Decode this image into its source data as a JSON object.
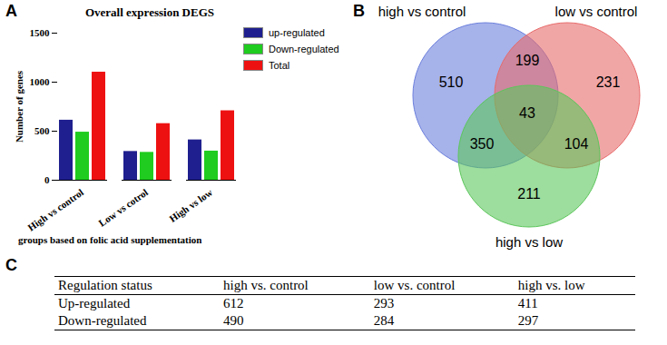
{
  "chart_data": [
    {
      "type": "bar",
      "panel_label": "A",
      "title": "Overall expression DEGS",
      "xlabel": "groups based on folic acid supplementation",
      "ylabel": "Number of genes",
      "categories": [
        "High vs control",
        "Low vs cotrol",
        "High vs low"
      ],
      "series": [
        {
          "name": "up-regulated",
          "color": "#1f1f8f",
          "values": [
            612,
            293,
            411
          ]
        },
        {
          "name": "Down-regulated",
          "color": "#1fcc1f",
          "values": [
            490,
            284,
            297
          ]
        },
        {
          "name": "Total",
          "color": "#ee1111",
          "values": [
            1102,
            577,
            708
          ]
        }
      ],
      "ylim": [
        0,
        1500
      ],
      "yticks": [
        0,
        500,
        1000,
        1500
      ],
      "legend": "right"
    },
    {
      "type": "venn",
      "panel_label": "B",
      "sets": [
        {
          "name": "high vs control",
          "color": "#6b7fdc"
        },
        {
          "name": "low vs control",
          "color": "#e86a6a"
        },
        {
          "name": "high vs low",
          "color": "#5cc65c"
        }
      ],
      "regions": [
        {
          "sets": [
            "high vs control"
          ],
          "value": 510
        },
        {
          "sets": [
            "low vs control"
          ],
          "value": 231
        },
        {
          "sets": [
            "high vs low"
          ],
          "value": 211
        },
        {
          "sets": [
            "high vs control",
            "low vs control"
          ],
          "value": 199
        },
        {
          "sets": [
            "high vs control",
            "high vs low"
          ],
          "value": 350
        },
        {
          "sets": [
            "low vs control",
            "high vs low"
          ],
          "value": 104
        },
        {
          "sets": [
            "high vs control",
            "low vs control",
            "high vs low"
          ],
          "value": 43
        }
      ]
    },
    {
      "type": "table",
      "panel_label": "C",
      "columns": [
        "Regulation status",
        "high vs. control",
        "low vs. control",
        "high vs. low"
      ],
      "rows": [
        [
          "Up-regulated",
          612,
          293,
          411
        ],
        [
          "Down-regulated",
          490,
          284,
          297
        ]
      ]
    }
  ]
}
